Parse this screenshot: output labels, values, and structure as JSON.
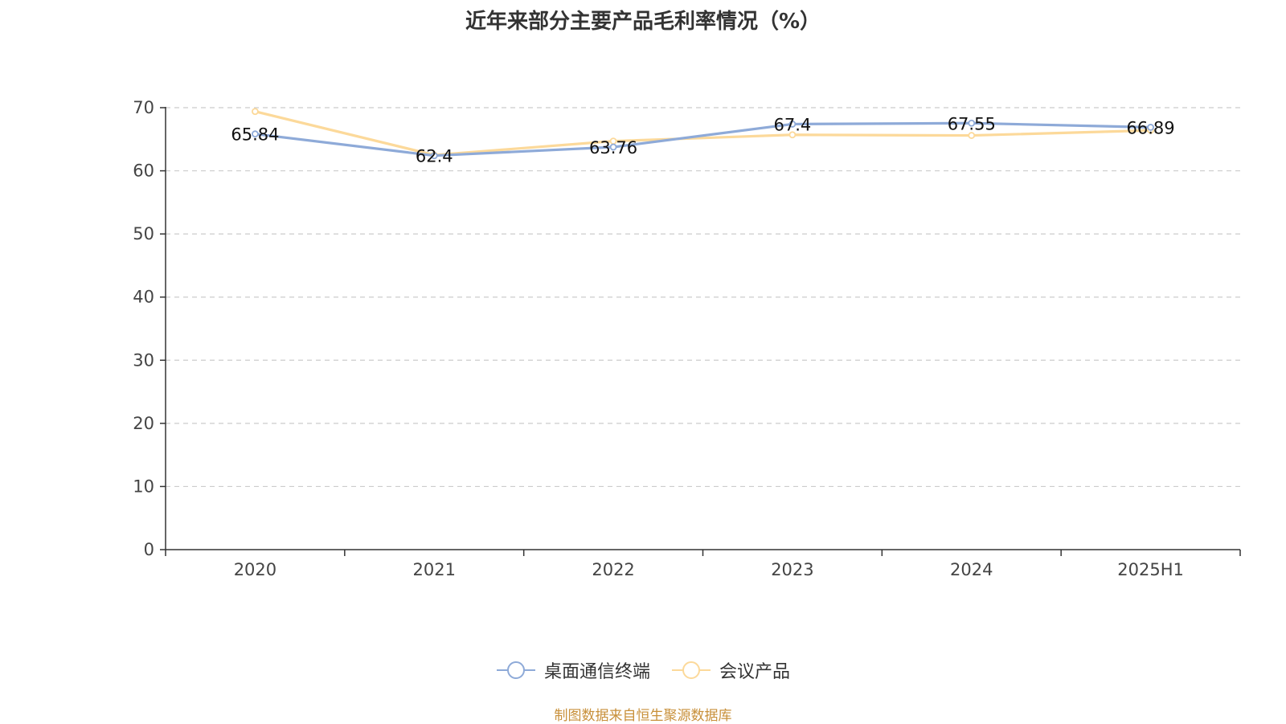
{
  "title": "近年来部分主要产品毛利率情况（%）",
  "source": "制图数据来自恒生聚源数据库",
  "chart_data": {
    "type": "line",
    "categories": [
      "2020",
      "2021",
      "2022",
      "2023",
      "2024",
      "2025H1"
    ],
    "ylim": [
      0,
      70
    ],
    "yticks": [
      0,
      10,
      20,
      30,
      40,
      50,
      60,
      70
    ],
    "grid": true,
    "legend_position": "bottom",
    "series": [
      {
        "name": "桌面通信终端",
        "color": "#8eaad8",
        "values": [
          65.84,
          62.4,
          63.76,
          67.4,
          67.55,
          66.89
        ],
        "labels": [
          "65.84",
          "62.4",
          "63.76",
          "67.4",
          "67.55",
          "66.89"
        ]
      },
      {
        "name": "会议产品",
        "color": "#fcd99a",
        "values": [
          69.4,
          62.5,
          64.7,
          65.7,
          65.6,
          66.4
        ]
      }
    ]
  }
}
